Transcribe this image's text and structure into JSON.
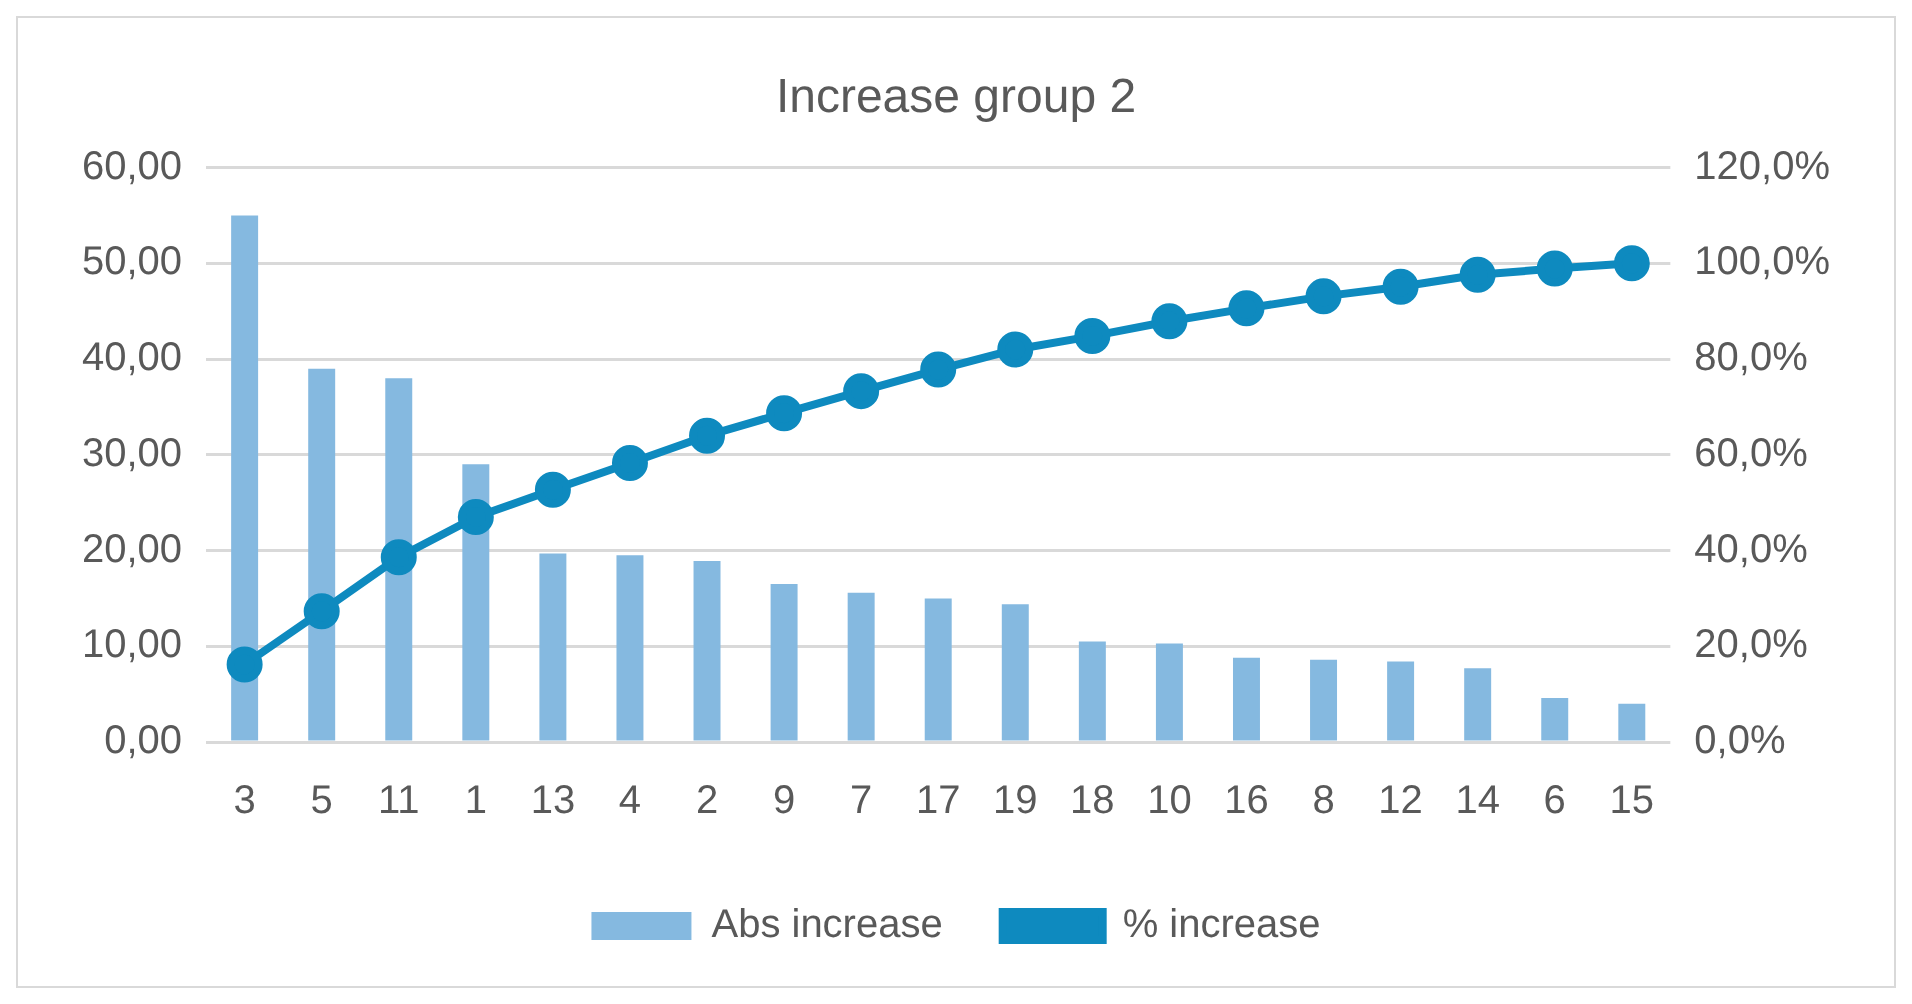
{
  "chart_data": {
    "type": "bar",
    "title": "Increase group 2",
    "categories": [
      "3",
      "5",
      "11",
      "1",
      "13",
      "4",
      "2",
      "9",
      "7",
      "17",
      "19",
      "18",
      "10",
      "16",
      "8",
      "12",
      "14",
      "6",
      "15"
    ],
    "series": [
      {
        "name": "Abs increase",
        "color": "#85b9e0",
        "values": [
          55,
          39,
          38,
          29,
          19.7,
          19.5,
          18.9,
          16.5,
          15.6,
          15,
          14.4,
          10.5,
          10.3,
          8.8,
          8.6,
          8.4,
          7.7,
          4.6,
          4
        ]
      },
      {
        "name": "% increase",
        "type": "line",
        "axis": "y2",
        "color": "#0e8abf",
        "marker": "circle",
        "values": [
          16.2,
          27.3,
          38.6,
          47,
          52.7,
          58.3,
          64,
          68.7,
          73.3,
          77.8,
          82,
          84.8,
          87.9,
          90.6,
          93.1,
          95.1,
          97.6,
          98.9,
          100
        ]
      }
    ],
    "ylim": [
      0,
      60
    ],
    "yticks": [
      {
        "value": 0,
        "label": "0,00"
      },
      {
        "value": 10,
        "label": "10,00"
      },
      {
        "value": 20,
        "label": "20,00"
      },
      {
        "value": 30,
        "label": "30,00"
      },
      {
        "value": 40,
        "label": "40,00"
      },
      {
        "value": 50,
        "label": "50,00"
      },
      {
        "value": 60,
        "label": "60,00"
      }
    ],
    "y2lim": [
      0,
      120
    ],
    "y2ticks": [
      {
        "value": 0,
        "label": "0,0%"
      },
      {
        "value": 20,
        "label": "20,0%"
      },
      {
        "value": 40,
        "label": "40,0%"
      },
      {
        "value": 60,
        "label": "60,0%"
      },
      {
        "value": 80,
        "label": "80,0%"
      },
      {
        "value": 100,
        "label": "100,0%"
      },
      {
        "value": 120,
        "label": "120,0%"
      }
    ],
    "grid": "y",
    "legend": "bottom"
  }
}
